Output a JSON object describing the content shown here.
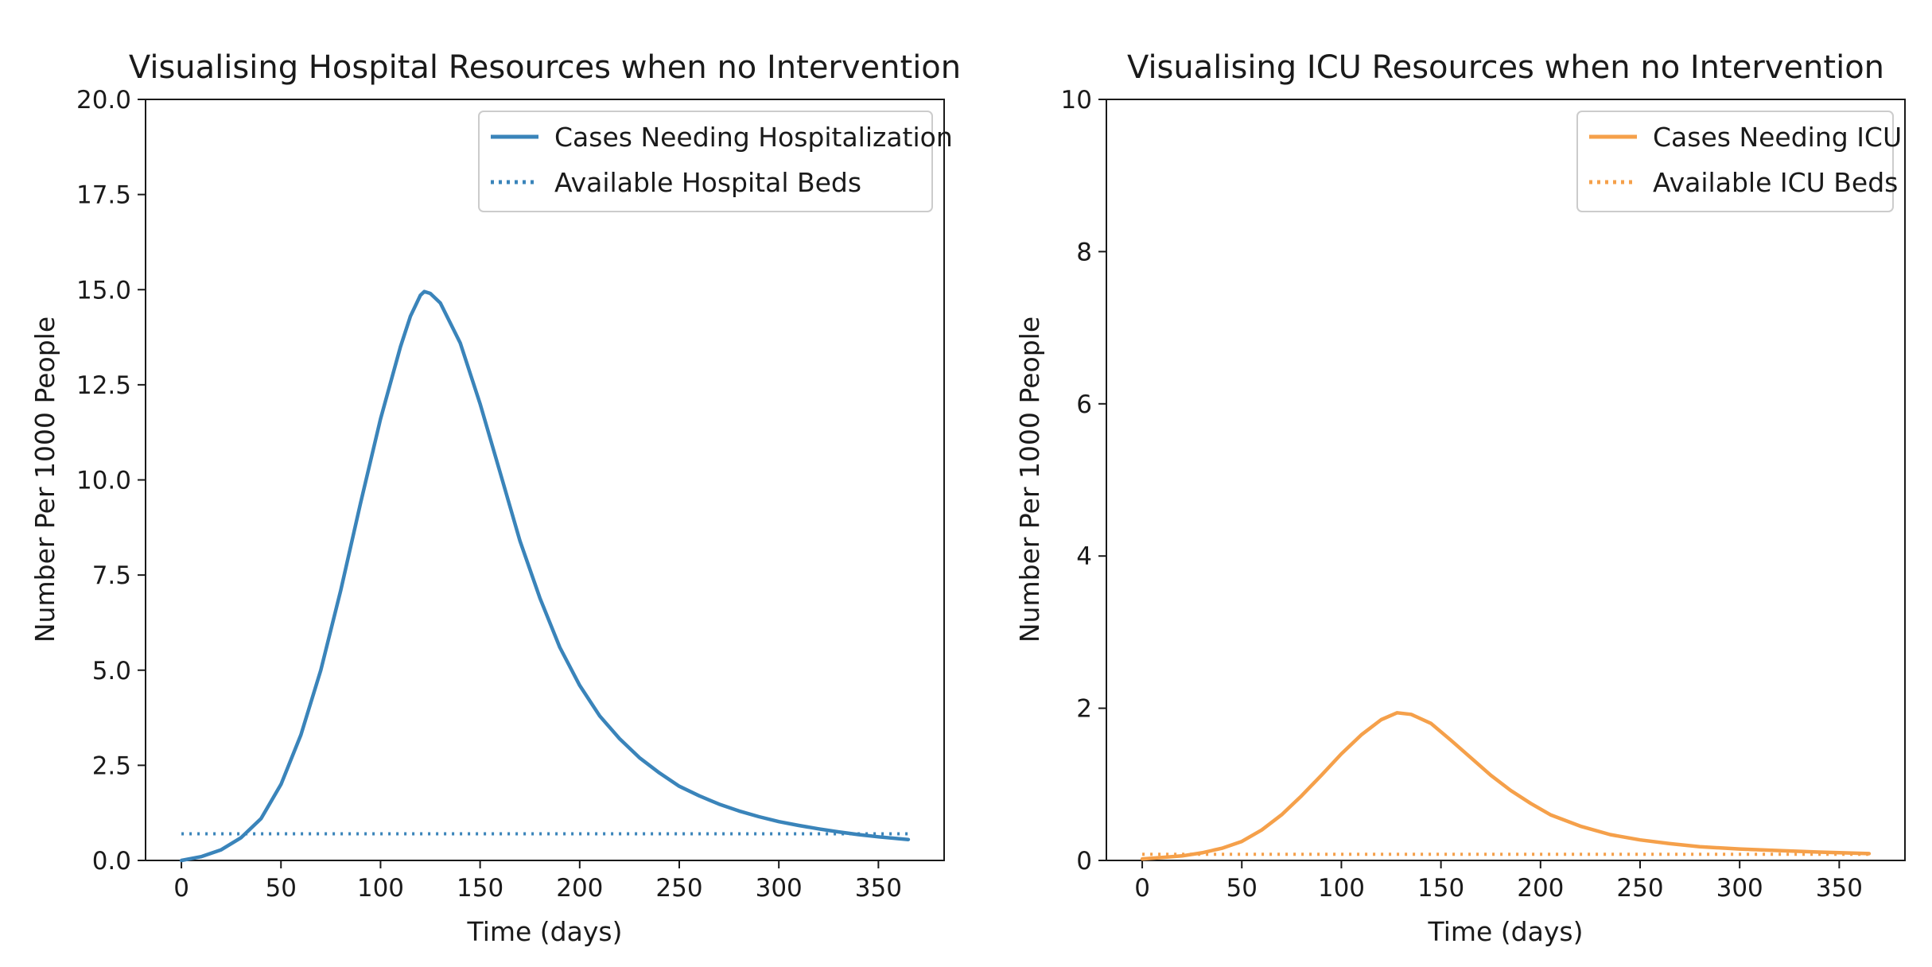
{
  "chart_data": [
    {
      "type": "line",
      "title": "Visualising Hospital Resources when no Intervention",
      "xlabel": "Time (days)",
      "ylabel": "Number Per 1000 People",
      "xlim": [
        -18,
        383
      ],
      "ylim": [
        0,
        20
      ],
      "xticks": [
        0,
        50,
        100,
        150,
        200,
        250,
        300,
        350
      ],
      "xtick_labels": [
        "0",
        "50",
        "100",
        "150",
        "200",
        "250",
        "300",
        "350"
      ],
      "yticks": [
        0,
        2.5,
        5,
        7.5,
        10,
        12.5,
        15,
        17.5,
        20
      ],
      "ytick_labels": [
        "0.0",
        "2.5",
        "5.0",
        "7.5",
        "10.0",
        "12.5",
        "15.0",
        "17.5",
        "20.0"
      ],
      "grid": false,
      "legend_position": "top-right",
      "series": [
        {
          "name": "Cases Needing Hospitalization",
          "style": "solid",
          "color": "#3a84ba",
          "points": [
            [
              0,
              0
            ],
            [
              10,
              0.1
            ],
            [
              20,
              0.28
            ],
            [
              30,
              0.6
            ],
            [
              40,
              1.1
            ],
            [
              50,
              2.0
            ],
            [
              60,
              3.3
            ],
            [
              70,
              5.0
            ],
            [
              80,
              7.1
            ],
            [
              90,
              9.4
            ],
            [
              100,
              11.6
            ],
            [
              110,
              13.5
            ],
            [
              115,
              14.3
            ],
            [
              120,
              14.85
            ],
            [
              122,
              14.95
            ],
            [
              125,
              14.9
            ],
            [
              130,
              14.65
            ],
            [
              140,
              13.6
            ],
            [
              150,
              12.0
            ],
            [
              160,
              10.2
            ],
            [
              170,
              8.4
            ],
            [
              180,
              6.9
            ],
            [
              190,
              5.6
            ],
            [
              200,
              4.6
            ],
            [
              210,
              3.8
            ],
            [
              220,
              3.2
            ],
            [
              230,
              2.7
            ],
            [
              240,
              2.3
            ],
            [
              250,
              1.95
            ],
            [
              260,
              1.7
            ],
            [
              270,
              1.48
            ],
            [
              280,
              1.3
            ],
            [
              290,
              1.15
            ],
            [
              300,
              1.02
            ],
            [
              310,
              0.92
            ],
            [
              320,
              0.83
            ],
            [
              330,
              0.75
            ],
            [
              340,
              0.68
            ],
            [
              350,
              0.62
            ],
            [
              365,
              0.55
            ]
          ]
        },
        {
          "name": "Available Hospital Beds",
          "style": "dotted",
          "color": "#3a84ba",
          "points": [
            [
              0,
              0.7
            ],
            [
              365,
              0.7
            ]
          ]
        }
      ]
    },
    {
      "type": "line",
      "title": "Visualising ICU Resources when no Intervention",
      "xlabel": "Time (days)",
      "ylabel": "Number Per 1000 People",
      "xlim": [
        -18,
        383
      ],
      "ylim": [
        0,
        10
      ],
      "xticks": [
        0,
        50,
        100,
        150,
        200,
        250,
        300,
        350
      ],
      "xtick_labels": [
        "0",
        "50",
        "100",
        "150",
        "200",
        "250",
        "300",
        "350"
      ],
      "yticks": [
        0,
        2,
        4,
        6,
        8,
        10
      ],
      "ytick_labels": [
        "0",
        "2",
        "4",
        "6",
        "8",
        "10"
      ],
      "grid": false,
      "legend_position": "top-right",
      "series": [
        {
          "name": "Cases Needing ICU",
          "style": "solid",
          "color": "#f5a04a",
          "points": [
            [
              0,
              0.02
            ],
            [
              10,
              0.04
            ],
            [
              20,
              0.06
            ],
            [
              30,
              0.1
            ],
            [
              40,
              0.16
            ],
            [
              50,
              0.25
            ],
            [
              60,
              0.4
            ],
            [
              70,
              0.6
            ],
            [
              80,
              0.85
            ],
            [
              90,
              1.12
            ],
            [
              100,
              1.4
            ],
            [
              110,
              1.65
            ],
            [
              120,
              1.85
            ],
            [
              128,
              1.94
            ],
            [
              135,
              1.92
            ],
            [
              145,
              1.8
            ],
            [
              155,
              1.58
            ],
            [
              165,
              1.35
            ],
            [
              175,
              1.12
            ],
            [
              185,
              0.92
            ],
            [
              195,
              0.75
            ],
            [
              205,
              0.6
            ],
            [
              220,
              0.45
            ],
            [
              235,
              0.34
            ],
            [
              250,
              0.27
            ],
            [
              265,
              0.22
            ],
            [
              280,
              0.18
            ],
            [
              300,
              0.15
            ],
            [
              320,
              0.13
            ],
            [
              340,
              0.11
            ],
            [
              365,
              0.09
            ]
          ]
        },
        {
          "name": "Available ICU Beds",
          "style": "dotted",
          "color": "#f5a04a",
          "points": [
            [
              0,
              0.08
            ],
            [
              365,
              0.08
            ]
          ]
        }
      ]
    }
  ]
}
